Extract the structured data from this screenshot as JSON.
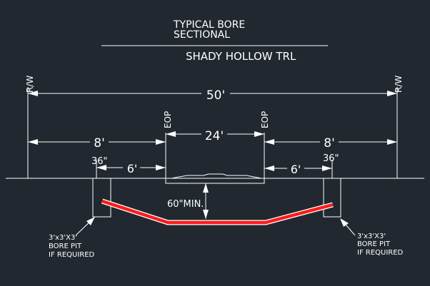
{
  "title": {
    "line1": "TYPICAL BORE",
    "line2": "SECTIONAL",
    "street": "SHADY HOLLOW TRL"
  },
  "labels": {
    "rw_left": "R/W",
    "rw_right": "R/W",
    "eop_left": "EOP",
    "eop_right": "EOP",
    "overall_width": "50'",
    "left_offset": "8'",
    "right_offset": "8'",
    "pavement_width": "24'",
    "left_bore_offset": "6'",
    "right_bore_offset": "6'",
    "left_pit_width": "36\"",
    "right_pit_width": "36\"",
    "min_depth": "60\"MIN."
  },
  "notes": {
    "left": [
      "3'x3'X3'",
      "BORE PIT",
      "IF REQUIRED"
    ],
    "right": [
      "3'x3'X3'",
      "BORE PIT",
      "IF REQUIRED"
    ]
  },
  "colors": {
    "background": "#212830",
    "linework": "#ffffff",
    "bore_path": "#ff1a1a"
  }
}
